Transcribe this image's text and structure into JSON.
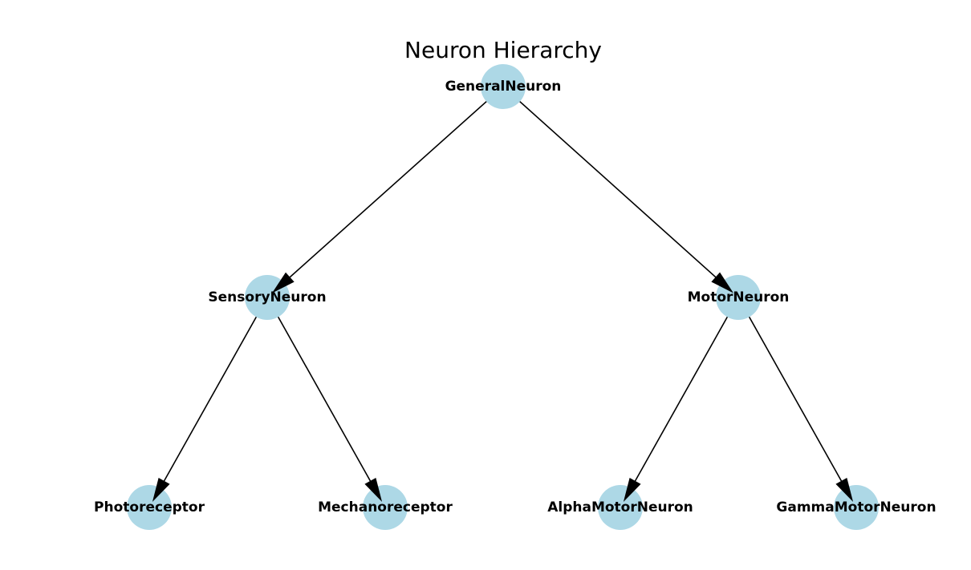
{
  "title": "Neuron Hierarchy",
  "colors": {
    "node_fill": "#add8e6",
    "edge": "#000000",
    "text": "#000000"
  },
  "nodes": [
    {
      "id": "GeneralNeuron",
      "label": "GeneralNeuron"
    },
    {
      "id": "SensoryNeuron",
      "label": "SensoryNeuron"
    },
    {
      "id": "MotorNeuron",
      "label": "MotorNeuron"
    },
    {
      "id": "Photoreceptor",
      "label": "Photoreceptor"
    },
    {
      "id": "Mechanoreceptor",
      "label": "Mechanoreceptor"
    },
    {
      "id": "AlphaMotorNeuron",
      "label": "AlphaMotorNeuron"
    },
    {
      "id": "GammaMotorNeuron",
      "label": "GammaMotorNeuron"
    }
  ],
  "edges": [
    {
      "from": "GeneralNeuron",
      "to": "SensoryNeuron"
    },
    {
      "from": "GeneralNeuron",
      "to": "MotorNeuron"
    },
    {
      "from": "SensoryNeuron",
      "to": "Photoreceptor"
    },
    {
      "from": "SensoryNeuron",
      "to": "Mechanoreceptor"
    },
    {
      "from": "MotorNeuron",
      "to": "AlphaMotorNeuron"
    },
    {
      "from": "MotorNeuron",
      "to": "GammaMotorNeuron"
    }
  ]
}
